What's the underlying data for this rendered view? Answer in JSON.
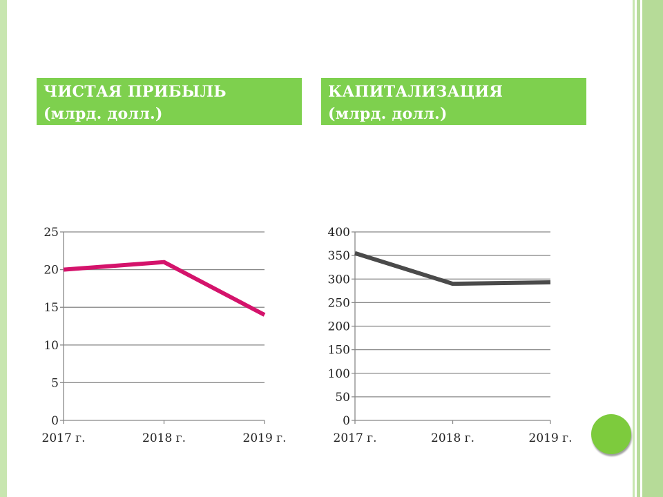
{
  "titles": {
    "left_line1": "ЧИСТАЯ ПРИБЫЛЬ",
    "left_line2": "(млрд. долл.)",
    "right_line1": "КАПИТАЛИЗАЦИЯ",
    "right_line2": "(млрд. долл.)"
  },
  "colors": {
    "accent": "#7ed04e",
    "profit_line": "#d4136b",
    "cap_line": "#4a4a4a"
  },
  "chart_data": [
    {
      "type": "line",
      "title": "ЧИСТАЯ ПРИБЫЛЬ (млрд. долл.)",
      "categories": [
        "2017 г.",
        "2018 г.",
        "2019 г."
      ],
      "series": [
        {
          "values": [
            20,
            21,
            14
          ]
        }
      ],
      "ylim": [
        0,
        25
      ],
      "yticks": [
        "0",
        "5",
        "10",
        "15",
        "20",
        "25"
      ],
      "grid": true
    },
    {
      "type": "line",
      "title": "КАПИТАЛИЗАЦИЯ (млрд. долл.)",
      "categories": [
        "2017 г.",
        "2018 г.",
        "2019 г."
      ],
      "series": [
        {
          "values": [
            355,
            290,
            293
          ]
        }
      ],
      "ylim": [
        0,
        400
      ],
      "yticks": [
        "0",
        "50",
        "100",
        "150",
        "200",
        "250",
        "300",
        "350",
        "400"
      ],
      "grid": true
    }
  ]
}
